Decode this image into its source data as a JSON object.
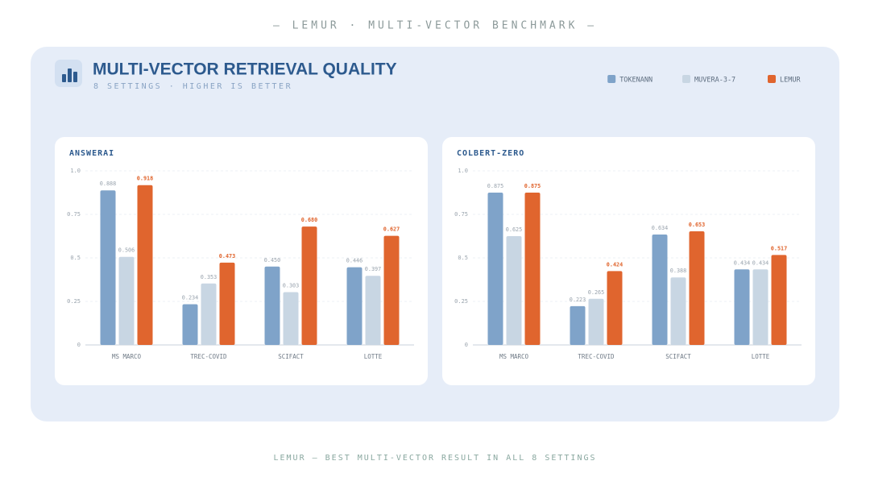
{
  "header": {
    "kicker": "— LEMUR · MULTI-VECTOR BENCHMARK —"
  },
  "panel": {
    "title": "MULTI-VECTOR RETRIEVAL QUALITY",
    "subtitle": "8 SETTINGS · HIGHER IS BETTER"
  },
  "footer": {
    "text": "LEMUR — BEST MULTI-VECTOR RESULT IN ALL 8 SETTINGS"
  },
  "chart_data": [
    {
      "type": "bar",
      "title": "ANSWERAI",
      "categories": [
        "MS MARCO",
        "TREC-COVID",
        "SCIFACT",
        "LOTTE"
      ],
      "series": [
        {
          "name": "TOKENANN",
          "color": "#7fa3c9",
          "values": [
            0.888,
            0.234,
            0.45,
            0.446
          ],
          "value_labels": [
            "0.888",
            "0.234",
            "0.450",
            "0.446"
          ]
        },
        {
          "name": "MUVERA-3-7",
          "color": "#c8d6e3",
          "values": [
            0.506,
            0.353,
            0.303,
            0.397
          ],
          "value_labels": [
            "0.506",
            "0.353",
            "0.303",
            "0.397"
          ]
        },
        {
          "name": "LEMUR",
          "color": "#e0652e",
          "values": [
            0.918,
            0.473,
            0.68,
            0.627
          ],
          "value_labels": [
            "0.918",
            "0.473",
            "0.680",
            "0.627"
          ]
        }
      ],
      "ylim": [
        0,
        1
      ],
      "yticks": [
        0,
        0.25,
        0.5,
        0.75,
        {
          "value": 1,
          "label": "1.0"
        }
      ],
      "grid": true,
      "legend": "top-right"
    },
    {
      "type": "bar",
      "title": "COLBERT-ZERO",
      "categories": [
        "MS MARCO",
        "TREC-COVID",
        "SCIFACT",
        "LOTTE"
      ],
      "series": [
        {
          "name": "TOKENANN",
          "color": "#7fa3c9",
          "values": [
            0.875,
            0.223,
            0.634,
            0.434
          ],
          "value_labels": [
            "0.875",
            "0.223",
            "0.634",
            "0.434"
          ]
        },
        {
          "name": "MUVERA-3-7",
          "color": "#c8d6e3",
          "values": [
            0.625,
            0.265,
            0.388,
            0.434
          ],
          "value_labels": [
            "0.625",
            "0.265",
            "0.388",
            "0.434"
          ]
        },
        {
          "name": "LEMUR",
          "color": "#e0652e",
          "values": [
            0.875,
            0.424,
            0.653,
            0.517
          ],
          "value_labels": [
            "0.875",
            "0.424",
            "0.653",
            "0.517"
          ]
        }
      ],
      "ylim": [
        0,
        1
      ],
      "yticks": [
        0,
        0.25,
        0.5,
        0.75,
        {
          "value": 1,
          "label": "1.0"
        }
      ],
      "grid": true
    }
  ]
}
